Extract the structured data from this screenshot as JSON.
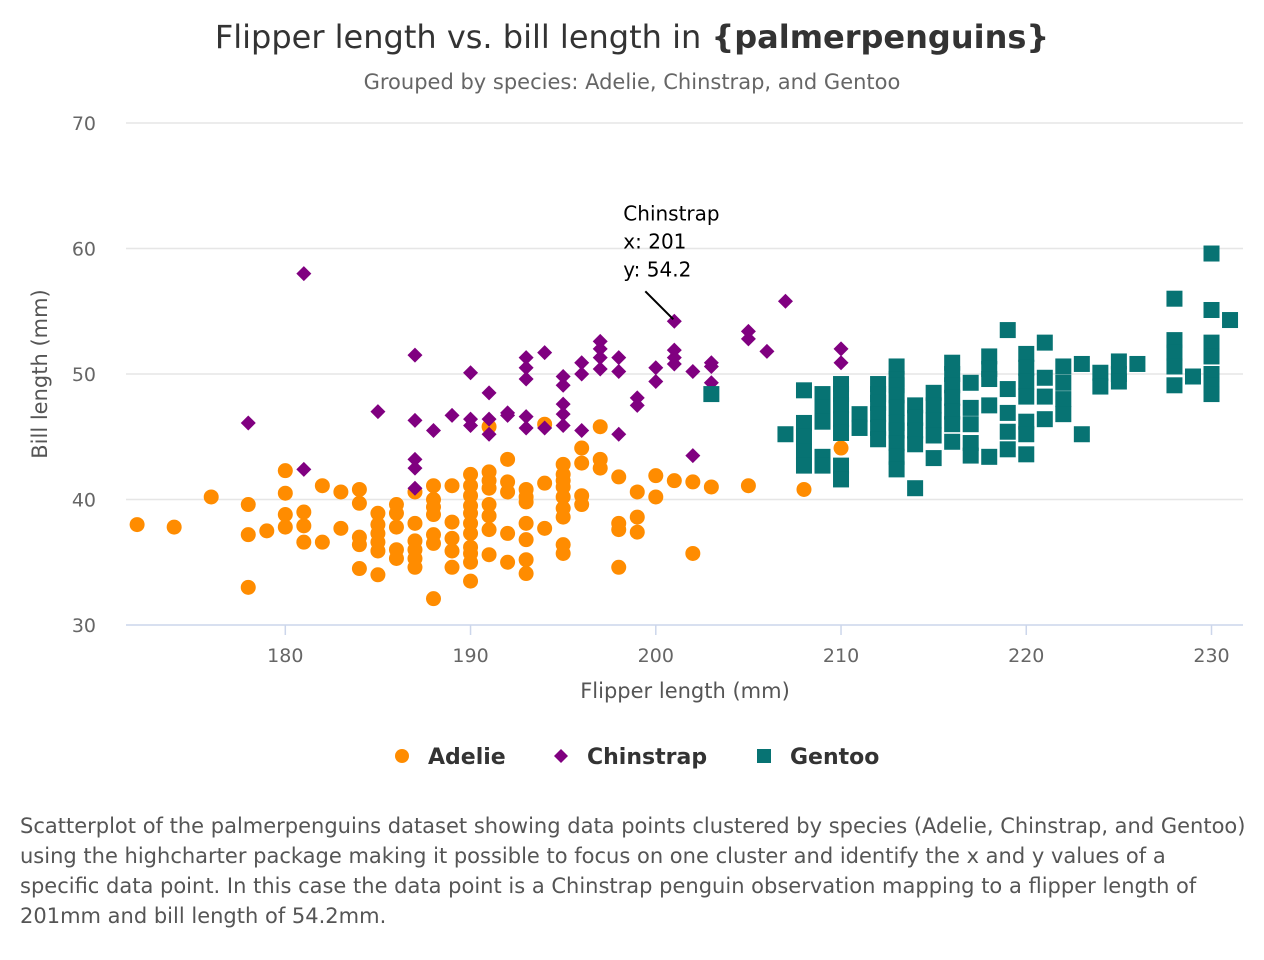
{
  "chart_data": {
    "type": "scatter",
    "title_prefix": "Flipper length vs. bill length in ",
    "title_bold": "{palmerpenguins}",
    "subtitle": "Grouped by species: Adelie, Chinstrap, and Gentoo",
    "xlabel": "Flipper length (mm)",
    "ylabel": "Bill length (mm)",
    "xlim": [
      171.4,
      231.7
    ],
    "ylim": [
      30,
      70
    ],
    "xticks": [
      180,
      190,
      200,
      210,
      220,
      230
    ],
    "yticks": [
      30,
      40,
      50,
      60,
      70
    ],
    "grid": "horizontal",
    "legend_position": "bottom-center",
    "series": [
      {
        "name": "Adelie",
        "color": "#ff8c00",
        "marker": "circle",
        "points": [
          [
            172,
            38.0
          ],
          [
            174,
            37.8
          ],
          [
            176,
            40.2
          ],
          [
            178,
            39.6
          ],
          [
            178,
            37.2
          ],
          [
            178,
            33.0
          ],
          [
            179,
            37.5
          ],
          [
            180,
            42.3
          ],
          [
            180,
            40.5
          ],
          [
            180,
            38.8
          ],
          [
            180,
            37.8
          ],
          [
            181,
            39.0
          ],
          [
            181,
            37.9
          ],
          [
            181,
            36.6
          ],
          [
            182,
            41.1
          ],
          [
            182,
            36.6
          ],
          [
            183,
            40.6
          ],
          [
            183,
            37.7
          ],
          [
            184,
            40.8
          ],
          [
            184,
            39.7
          ],
          [
            184,
            37.0
          ],
          [
            184,
            36.4
          ],
          [
            184,
            34.5
          ],
          [
            185,
            38.9
          ],
          [
            185,
            38.0
          ],
          [
            185,
            37.3
          ],
          [
            185,
            36.6
          ],
          [
            185,
            35.9
          ],
          [
            185,
            34.0
          ],
          [
            186,
            39.6
          ],
          [
            186,
            38.9
          ],
          [
            186,
            37.8
          ],
          [
            186,
            36.0
          ],
          [
            186,
            35.3
          ],
          [
            187,
            40.6
          ],
          [
            187,
            38.1
          ],
          [
            187,
            36.7
          ],
          [
            187,
            36.0
          ],
          [
            187,
            35.3
          ],
          [
            187,
            34.6
          ],
          [
            188,
            41.1
          ],
          [
            188,
            40.0
          ],
          [
            188,
            39.4
          ],
          [
            188,
            38.8
          ],
          [
            188,
            37.2
          ],
          [
            188,
            36.5
          ],
          [
            188,
            32.1
          ],
          [
            189,
            41.1
          ],
          [
            189,
            38.2
          ],
          [
            189,
            36.9
          ],
          [
            189,
            35.9
          ],
          [
            189,
            34.6
          ],
          [
            190,
            42.0
          ],
          [
            190,
            41.1
          ],
          [
            190,
            40.3
          ],
          [
            190,
            39.5
          ],
          [
            190,
            38.9
          ],
          [
            190,
            38.1
          ],
          [
            190,
            37.3
          ],
          [
            190,
            36.2
          ],
          [
            190,
            35.7
          ],
          [
            190,
            35.0
          ],
          [
            190,
            33.5
          ],
          [
            191,
            45.8
          ],
          [
            191,
            42.2
          ],
          [
            191,
            41.5
          ],
          [
            191,
            40.9
          ],
          [
            191,
            39.6
          ],
          [
            191,
            38.7
          ],
          [
            191,
            37.6
          ],
          [
            191,
            35.6
          ],
          [
            192,
            43.2
          ],
          [
            192,
            41.4
          ],
          [
            192,
            40.6
          ],
          [
            192,
            37.3
          ],
          [
            192,
            35.0
          ],
          [
            193,
            40.8
          ],
          [
            193,
            40.2
          ],
          [
            193,
            39.8
          ],
          [
            193,
            38.1
          ],
          [
            193,
            36.8
          ],
          [
            193,
            35.2
          ],
          [
            193,
            34.1
          ],
          [
            194,
            46.0
          ],
          [
            194,
            41.3
          ],
          [
            194,
            37.7
          ],
          [
            195,
            42.8
          ],
          [
            195,
            42.0
          ],
          [
            195,
            41.5
          ],
          [
            195,
            41.0
          ],
          [
            195,
            40.2
          ],
          [
            195,
            39.3
          ],
          [
            195,
            38.6
          ],
          [
            195,
            36.4
          ],
          [
            195,
            35.7
          ],
          [
            196,
            44.1
          ],
          [
            196,
            42.9
          ],
          [
            196,
            40.3
          ],
          [
            196,
            39.6
          ],
          [
            197,
            45.8
          ],
          [
            197,
            43.2
          ],
          [
            197,
            42.5
          ],
          [
            198,
            41.8
          ],
          [
            198,
            38.1
          ],
          [
            198,
            37.6
          ],
          [
            198,
            34.6
          ],
          [
            199,
            40.6
          ],
          [
            199,
            38.6
          ],
          [
            199,
            37.4
          ],
          [
            200,
            41.9
          ],
          [
            200,
            40.2
          ],
          [
            201,
            41.5
          ],
          [
            202,
            41.4
          ],
          [
            202,
            35.7
          ],
          [
            203,
            41.0
          ],
          [
            205,
            41.1
          ],
          [
            208,
            40.8
          ],
          [
            210,
            44.1
          ]
        ]
      },
      {
        "name": "Chinstrap",
        "color": "#800080",
        "marker": "diamond",
        "points": [
          [
            178,
            46.1
          ],
          [
            181,
            58.0
          ],
          [
            181,
            42.4
          ],
          [
            185,
            47.0
          ],
          [
            187,
            51.5
          ],
          [
            187,
            46.3
          ],
          [
            187,
            43.2
          ],
          [
            187,
            42.5
          ],
          [
            187,
            40.9
          ],
          [
            188,
            45.5
          ],
          [
            189,
            46.7
          ],
          [
            190,
            50.1
          ],
          [
            190,
            46.4
          ],
          [
            190,
            45.9
          ],
          [
            191,
            48.5
          ],
          [
            191,
            46.4
          ],
          [
            191,
            45.2
          ],
          [
            192,
            46.9
          ],
          [
            192,
            46.7
          ],
          [
            193,
            51.3
          ],
          [
            193,
            50.5
          ],
          [
            193,
            49.6
          ],
          [
            193,
            46.6
          ],
          [
            193,
            45.7
          ],
          [
            194,
            51.7
          ],
          [
            194,
            45.7
          ],
          [
            195,
            49.8
          ],
          [
            195,
            49.1
          ],
          [
            195,
            47.6
          ],
          [
            195,
            46.8
          ],
          [
            195,
            45.9
          ],
          [
            196,
            50.9
          ],
          [
            196,
            50.0
          ],
          [
            196,
            45.5
          ],
          [
            197,
            52.6
          ],
          [
            197,
            52.0
          ],
          [
            197,
            51.3
          ],
          [
            197,
            50.4
          ],
          [
            198,
            51.3
          ],
          [
            198,
            50.2
          ],
          [
            198,
            45.2
          ],
          [
            199,
            48.1
          ],
          [
            199,
            47.5
          ],
          [
            200,
            50.5
          ],
          [
            200,
            49.4
          ],
          [
            201,
            54.2
          ],
          [
            201,
            51.9
          ],
          [
            201,
            51.3
          ],
          [
            201,
            50.8
          ],
          [
            202,
            50.2
          ],
          [
            202,
            43.5
          ],
          [
            203,
            50.9
          ],
          [
            203,
            50.6
          ],
          [
            203,
            49.3
          ],
          [
            205,
            53.4
          ],
          [
            205,
            52.8
          ],
          [
            206,
            51.8
          ],
          [
            207,
            55.8
          ],
          [
            210,
            52.0
          ],
          [
            210,
            50.9
          ],
          [
            210,
            49.0
          ]
        ]
      },
      {
        "name": "Gentoo",
        "color": "#077373",
        "marker": "square",
        "points": [
          [
            203,
            48.4
          ],
          [
            207,
            45.2
          ],
          [
            208,
            48.7
          ],
          [
            208,
            46.1
          ],
          [
            208,
            45.0
          ],
          [
            208,
            43.8
          ],
          [
            208,
            42.7
          ],
          [
            209,
            48.4
          ],
          [
            209,
            47.3
          ],
          [
            209,
            46.2
          ],
          [
            209,
            43.4
          ],
          [
            209,
            42.7
          ],
          [
            210,
            49.2
          ],
          [
            210,
            48.4
          ],
          [
            210,
            47.5
          ],
          [
            210,
            46.4
          ],
          [
            210,
            45.3
          ],
          [
            210,
            42.7
          ],
          [
            210,
            41.6
          ],
          [
            211,
            46.8
          ],
          [
            211,
            45.7
          ],
          [
            212,
            49.2
          ],
          [
            212,
            48.4
          ],
          [
            212,
            47.7
          ],
          [
            212,
            46.8
          ],
          [
            212,
            45.7
          ],
          [
            212,
            44.8
          ],
          [
            213,
            50.6
          ],
          [
            213,
            49.6
          ],
          [
            213,
            49.1
          ],
          [
            213,
            48.3
          ],
          [
            213,
            47.3
          ],
          [
            213,
            46.1
          ],
          [
            213,
            45.5
          ],
          [
            213,
            44.5
          ],
          [
            213,
            43.4
          ],
          [
            213,
            42.4
          ],
          [
            214,
            47.5
          ],
          [
            214,
            46.5
          ],
          [
            214,
            45.5
          ],
          [
            214,
            44.4
          ],
          [
            214,
            40.9
          ],
          [
            215,
            48.5
          ],
          [
            215,
            47.5
          ],
          [
            215,
            46.3
          ],
          [
            215,
            45.1
          ],
          [
            215,
            43.3
          ],
          [
            216,
            50.9
          ],
          [
            216,
            50.0
          ],
          [
            216,
            49.1
          ],
          [
            216,
            48.1
          ],
          [
            216,
            47.0
          ],
          [
            216,
            46.0
          ],
          [
            216,
            44.6
          ],
          [
            217,
            49.3
          ],
          [
            217,
            47.3
          ],
          [
            217,
            46.0
          ],
          [
            217,
            44.5
          ],
          [
            217,
            43.5
          ],
          [
            218,
            51.4
          ],
          [
            218,
            50.4
          ],
          [
            218,
            49.6
          ],
          [
            218,
            47.5
          ],
          [
            218,
            43.4
          ],
          [
            219,
            53.5
          ],
          [
            219,
            48.8
          ],
          [
            219,
            46.9
          ],
          [
            219,
            45.4
          ],
          [
            219,
            44.0
          ],
          [
            220,
            51.6
          ],
          [
            220,
            50.5
          ],
          [
            220,
            49.4
          ],
          [
            220,
            48.2
          ],
          [
            220,
            46.2
          ],
          [
            220,
            45.2
          ],
          [
            220,
            43.6
          ],
          [
            221,
            52.5
          ],
          [
            221,
            49.7
          ],
          [
            221,
            48.2
          ],
          [
            221,
            46.4
          ],
          [
            222,
            50.6
          ],
          [
            222,
            49.3
          ],
          [
            222,
            48.0
          ],
          [
            222,
            46.8
          ],
          [
            223,
            50.8
          ],
          [
            223,
            45.2
          ],
          [
            224,
            50.1
          ],
          [
            224,
            49.0
          ],
          [
            225,
            51.0
          ],
          [
            225,
            50.0
          ],
          [
            225,
            49.4
          ],
          [
            226,
            50.8
          ],
          [
            228,
            56.0
          ],
          [
            228,
            52.7
          ],
          [
            228,
            51.7
          ],
          [
            228,
            50.6
          ],
          [
            228,
            49.1
          ],
          [
            229,
            49.8
          ],
          [
            230,
            59.6
          ],
          [
            230,
            55.1
          ],
          [
            230,
            52.5
          ],
          [
            230,
            51.4
          ],
          [
            230,
            50.0
          ],
          [
            230,
            49.1
          ],
          [
            230,
            48.4
          ],
          [
            231,
            54.3
          ]
        ]
      }
    ],
    "tooltip": {
      "series": "Chinstrap",
      "x_line": "x: 201",
      "y_line": "y: 54.2",
      "x": 201,
      "y": 54.2
    }
  },
  "caption": "Scatterplot of the palmerpenguins dataset showing data points clustered by species (Adelie, Chinstrap, and Gentoo) using the highcharter package making it possible to focus on one cluster and identify the x and y values of a specific data point. In this case the data point is a Chinstrap penguin observation mapping to a flipper length of 201mm and bill length of 54.2mm."
}
